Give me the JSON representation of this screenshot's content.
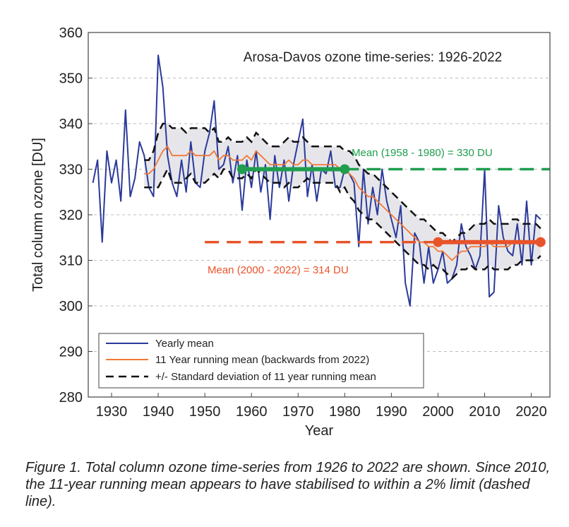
{
  "chart_data": {
    "type": "line",
    "title": "Arosa-Davos ozone time-series: 1926-2022",
    "xlabel": "Year",
    "ylabel": "Total column ozone [DU]",
    "xlim": [
      1925,
      2024
    ],
    "ylim": [
      280,
      360
    ],
    "x_ticks": [
      1930,
      1940,
      1950,
      1960,
      1970,
      1980,
      1990,
      2000,
      2010,
      2020
    ],
    "y_ticks": [
      280,
      290,
      300,
      310,
      320,
      330,
      340,
      350,
      360
    ],
    "grid": "horizontal dashed",
    "legend_position": "bottom-left",
    "colors": {
      "yearly": "#2b3a9a",
      "running": "#f07838",
      "sd": "#111111",
      "band": "#e6e6ea",
      "mean_green": "#1f9e4e",
      "mean_red": "#e8542a"
    },
    "legend": [
      {
        "label": "Yearly mean",
        "style": "yearly"
      },
      {
        "label": "11 Year running mean (backwards from 2022)",
        "style": "running"
      },
      {
        "label": "+/- Standard deviation of 11 year running mean",
        "style": "sd"
      }
    ],
    "annotations": {
      "green": "Mean (1958 - 1980) = 330 DU",
      "red": "Mean (2000 - 2022) = 314 DU"
    },
    "series": [
      {
        "name": "Yearly mean",
        "x": [
          1926,
          1927,
          1928,
          1929,
          1930,
          1931,
          1932,
          1933,
          1934,
          1935,
          1936,
          1937,
          1938,
          1939,
          1940,
          1941,
          1942,
          1943,
          1944,
          1945,
          1946,
          1947,
          1948,
          1949,
          1950,
          1951,
          1952,
          1953,
          1954,
          1955,
          1956,
          1957,
          1958,
          1959,
          1960,
          1961,
          1962,
          1963,
          1964,
          1965,
          1966,
          1967,
          1968,
          1969,
          1970,
          1971,
          1972,
          1973,
          1974,
          1975,
          1976,
          1977,
          1978,
          1979,
          1980,
          1981,
          1982,
          1983,
          1984,
          1985,
          1986,
          1987,
          1988,
          1989,
          1990,
          1991,
          1992,
          1993,
          1994,
          1995,
          1996,
          1997,
          1998,
          1999,
          2000,
          2001,
          2002,
          2003,
          2004,
          2005,
          2006,
          2007,
          2008,
          2009,
          2010,
          2011,
          2012,
          2013,
          2014,
          2015,
          2016,
          2017,
          2018,
          2019,
          2020,
          2021,
          2022
        ],
        "values": [
          327,
          332,
          314,
          334,
          327,
          332,
          323,
          343,
          324,
          328,
          336,
          333,
          326,
          324,
          355,
          348,
          333,
          327,
          324,
          332,
          325,
          336,
          327,
          326,
          334,
          338,
          345,
          330,
          331,
          335,
          327,
          333,
          321,
          332,
          326,
          334,
          325,
          331,
          319,
          333,
          326,
          332,
          323,
          331,
          336,
          341,
          324,
          331,
          323,
          330,
          329,
          334,
          326,
          326,
          330,
          329,
          327,
          313,
          330,
          318,
          326,
          320,
          330,
          323,
          319,
          315,
          322,
          305,
          300,
          316,
          314,
          305,
          313,
          305,
          308,
          312,
          305,
          306,
          309,
          318,
          313,
          311,
          308,
          311,
          330,
          302,
          303,
          322,
          315,
          312,
          311,
          318,
          309,
          323,
          309,
          320,
          319
        ]
      },
      {
        "name": "11 Year running mean (backwards from 2022)",
        "x": [
          1937,
          1938,
          1939,
          1940,
          1941,
          1942,
          1943,
          1944,
          1945,
          1946,
          1947,
          1948,
          1949,
          1950,
          1951,
          1952,
          1953,
          1954,
          1955,
          1956,
          1957,
          1958,
          1959,
          1960,
          1961,
          1962,
          1963,
          1964,
          1965,
          1966,
          1967,
          1968,
          1969,
          1970,
          1971,
          1972,
          1973,
          1974,
          1975,
          1976,
          1977,
          1978,
          1979,
          1980,
          1981,
          1982,
          1983,
          1984,
          1985,
          1986,
          1987,
          1988,
          1989,
          1990,
          1991,
          1992,
          1993,
          1994,
          1995,
          1996,
          1997,
          1998,
          1999,
          2000,
          2001,
          2002,
          2003,
          2004,
          2005,
          2006,
          2007,
          2008,
          2009,
          2010,
          2011,
          2012,
          2013,
          2014,
          2015,
          2016,
          2017,
          2018,
          2019,
          2020,
          2021,
          2022
        ],
        "values": [
          329,
          329,
          330,
          332,
          334,
          335,
          333,
          333,
          333,
          333,
          334,
          333,
          333,
          333,
          333,
          334,
          332,
          333,
          333,
          332,
          332,
          332,
          333,
          332,
          334,
          333,
          332,
          331,
          331,
          331,
          331,
          332,
          331,
          331,
          332,
          332,
          331,
          331,
          331,
          331,
          331,
          331,
          330,
          330,
          329,
          328,
          326,
          325,
          324,
          324,
          323,
          322,
          321,
          320,
          319,
          318,
          317,
          316,
          315,
          314,
          314,
          313,
          313,
          312,
          312,
          311,
          310,
          311,
          312,
          312,
          313,
          313,
          313,
          313,
          314,
          313,
          313,
          313,
          313,
          314,
          314,
          314,
          314,
          314,
          314,
          314
        ]
      },
      {
        "name": "+/- Standard deviation of 11 year running mean",
        "x": [
          1937,
          1938,
          1939,
          1940,
          1941,
          1942,
          1943,
          1944,
          1945,
          1946,
          1947,
          1948,
          1949,
          1950,
          1951,
          1952,
          1953,
          1954,
          1955,
          1956,
          1957,
          1958,
          1959,
          1960,
          1961,
          1962,
          1963,
          1964,
          1965,
          1966,
          1967,
          1968,
          1969,
          1970,
          1971,
          1972,
          1973,
          1974,
          1975,
          1976,
          1977,
          1978,
          1979,
          1980,
          1981,
          1982,
          1983,
          1984,
          1985,
          1986,
          1987,
          1988,
          1989,
          1990,
          1991,
          1992,
          1993,
          1994,
          1995,
          1996,
          1997,
          1998,
          1999,
          2000,
          2001,
          2002,
          2003,
          2004,
          2005,
          2006,
          2007,
          2008,
          2009,
          2010,
          2011,
          2012,
          2013,
          2014,
          2015,
          2016,
          2017,
          2018,
          2019,
          2020,
          2021,
          2022
        ],
        "upper": [
          332,
          332,
          334,
          338,
          340,
          340,
          339,
          339,
          339,
          338,
          339,
          339,
          339,
          339,
          338,
          339,
          336,
          336,
          337,
          336,
          336,
          336,
          337,
          336,
          338,
          337,
          336,
          335,
          335,
          335,
          336,
          337,
          336,
          336,
          337,
          336,
          335,
          335,
          335,
          335,
          335,
          335,
          335,
          334,
          334,
          333,
          331,
          330,
          329,
          329,
          328,
          327,
          326,
          325,
          324,
          323,
          322,
          321,
          320,
          319,
          319,
          318,
          317,
          316,
          316,
          315,
          314,
          315,
          316,
          316,
          317,
          318,
          318,
          318,
          319,
          318,
          318,
          318,
          318,
          319,
          319,
          318,
          318,
          318,
          318,
          317
        ],
        "lower": [
          326,
          326,
          326,
          326,
          328,
          330,
          327,
          327,
          327,
          328,
          329,
          327,
          327,
          327,
          328,
          329,
          328,
          330,
          330,
          328,
          328,
          328,
          329,
          328,
          330,
          329,
          328,
          327,
          327,
          327,
          326,
          327,
          326,
          326,
          327,
          328,
          327,
          327,
          327,
          327,
          327,
          327,
          325,
          326,
          324,
          323,
          321,
          320,
          319,
          319,
          318,
          317,
          316,
          315,
          314,
          313,
          312,
          311,
          310,
          309,
          309,
          308,
          309,
          308,
          308,
          307,
          306,
          307,
          308,
          308,
          309,
          308,
          308,
          308,
          309,
          308,
          308,
          308,
          308,
          309,
          309,
          310,
          310,
          310,
          310,
          311
        ]
      }
    ],
    "mean_lines": [
      {
        "label": "Mean (1958 - 1980) = 330 DU",
        "value": 330,
        "period": [
          1958,
          1980
        ],
        "dash_from": 1980,
        "dash_to": 2024,
        "color": "mean_green"
      },
      {
        "label": "Mean (2000 - 2022) = 314 DU",
        "value": 314,
        "period": [
          2000,
          2022
        ],
        "dash_from": 1950,
        "dash_to": 2000,
        "color": "mean_red"
      }
    ]
  },
  "caption": "Figure 1. Total column ozone time-series from 1926 to 2022 are shown. Since 2010, the 11-year running mean appears to have stabilised to within a 2% limit (dashed line)."
}
